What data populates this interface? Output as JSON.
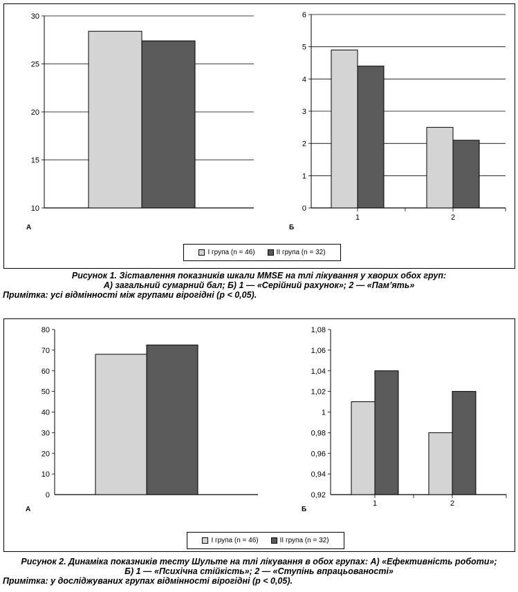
{
  "colors": {
    "group1": "#d4d4d4",
    "group2": "#5a5a5a",
    "grid": "#000000"
  },
  "figure1": {
    "legend": {
      "group1": "I група (n = 46)",
      "group2": "II група (n = 32)"
    },
    "caption_line1": "Рисунок 1. Зіставлення показників шкали MMSE на тлі лікування у хворих обох груп:",
    "caption_line2": "А) загальний сумарний бал; Б) 1 — «Серійний рахунок»; 2 — «Пам’ять»",
    "note": "Примітка: усі відмінності між групами вірогідні (р < 0,05)."
  },
  "figure2": {
    "legend": {
      "group1": "I група (n = 46)",
      "group2": "II група (n = 32)"
    },
    "caption_line1": "Рисунок 2. Динаміка показників тесту Шульте на тлі лікування в обох групах: А) «Ефективність роботи»;",
    "caption_line2": "Б) 1 — «Психічна стійкість»; 2 — «Ступінь впрацьованості»",
    "note": "Примітка: у досліджуваних групах відмінності вірогідні (р < 0,05)."
  },
  "chart_data": [
    {
      "id": "fig1a",
      "type": "bar",
      "panel_label": "А",
      "categories": [
        ""
      ],
      "series": [
        {
          "values": [
            28.4
          ]
        },
        {
          "values": [
            27.4
          ]
        }
      ],
      "ylim": [
        10,
        30
      ],
      "yticks": [
        "10",
        "15",
        "20",
        "25",
        "30"
      ],
      "grid": true
    },
    {
      "id": "fig1b",
      "type": "bar",
      "panel_label": "Б",
      "categories": [
        "1",
        "2"
      ],
      "series": [
        {
          "values": [
            4.9,
            2.5
          ]
        },
        {
          "values": [
            4.4,
            2.1
          ]
        }
      ],
      "ylim": [
        0,
        6
      ],
      "yticks": [
        "0",
        "1",
        "2",
        "3",
        "4",
        "5",
        "6"
      ],
      "grid": true
    },
    {
      "id": "fig2a",
      "type": "bar",
      "panel_label": "А",
      "categories": [
        ""
      ],
      "series": [
        {
          "values": [
            68
          ]
        },
        {
          "values": [
            72.5
          ]
        }
      ],
      "ylim": [
        0,
        80
      ],
      "yticks": [
        "0",
        "10",
        "20",
        "30",
        "40",
        "50",
        "60",
        "70",
        "80"
      ],
      "grid": false
    },
    {
      "id": "fig2b",
      "type": "bar",
      "panel_label": "Б",
      "categories": [
        "1",
        "2"
      ],
      "series": [
        {
          "values": [
            1.01,
            0.98
          ]
        },
        {
          "values": [
            1.04,
            1.02
          ]
        }
      ],
      "ylim": [
        0.92,
        1.08
      ],
      "yticks": [
        "0,92",
        "0,94",
        "0,96",
        "0,98",
        "1",
        "1,02",
        "1,04",
        "1,06",
        "1,08"
      ],
      "grid": false
    }
  ]
}
